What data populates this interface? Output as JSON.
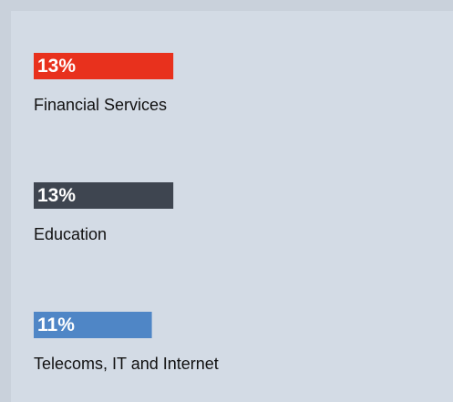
{
  "chart_data": {
    "type": "bar",
    "categories": [
      "Financial Services",
      "Education",
      "Telecoms, IT and Internet"
    ],
    "values": [
      13,
      13,
      11
    ],
    "value_labels": [
      "13%",
      "13%",
      "11%"
    ],
    "colors": [
      "#e8311d",
      "#3e4550",
      "#4f86c6"
    ]
  }
}
